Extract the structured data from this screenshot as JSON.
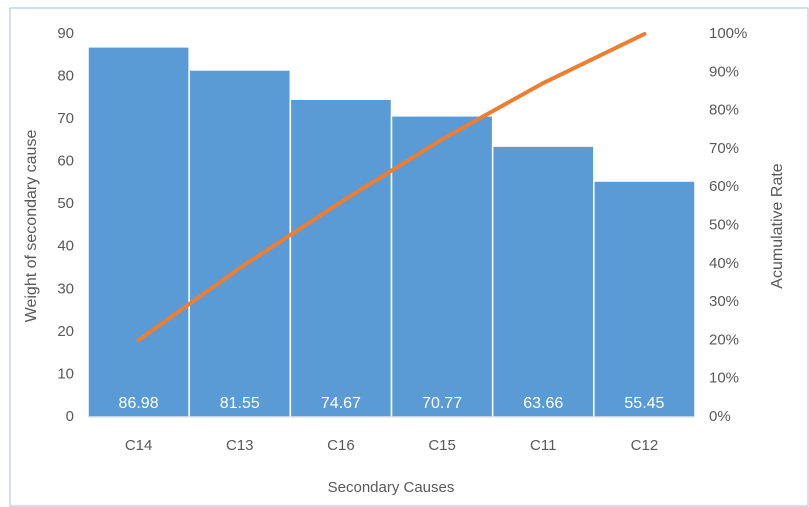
{
  "chart_data": {
    "type": "pareto",
    "x_label": "Secondary Causes",
    "y_label": "Weight of secondary cause",
    "y2_label": "Acumulative Rate",
    "categories": [
      "C14",
      "C13",
      "C16",
      "C15",
      "C11",
      "C12"
    ],
    "series": [
      {
        "name": "Weight",
        "color": "#5b9bd5",
        "values": [
          86.98,
          81.55,
          74.67,
          70.77,
          63.66,
          55.45
        ]
      },
      {
        "name": "Accumulative Rate",
        "color": "#ed7d31",
        "axis": "y2",
        "values": [
          20.08,
          38.91,
          56.16,
          72.5,
          87.2,
          100
        ]
      }
    ],
    "ylim": [
      0,
      90
    ],
    "yticks": [
      0,
      10,
      20,
      30,
      40,
      50,
      60,
      70,
      80,
      90
    ],
    "y2lim": [
      0,
      100
    ],
    "y2ticks": [
      {
        "value": 0,
        "label": "0%"
      },
      {
        "value": 10,
        "label": "10%"
      },
      {
        "value": 20,
        "label": "20%"
      },
      {
        "value": 30,
        "label": "30%"
      },
      {
        "value": 40,
        "label": "40%"
      },
      {
        "value": 50,
        "label": "50%"
      },
      {
        "value": 60,
        "label": "60%"
      },
      {
        "value": 70,
        "label": "70%"
      },
      {
        "value": 80,
        "label": "80%"
      },
      {
        "value": 90,
        "label": "90%"
      },
      {
        "value": 100,
        "label": "100%"
      }
    ]
  }
}
